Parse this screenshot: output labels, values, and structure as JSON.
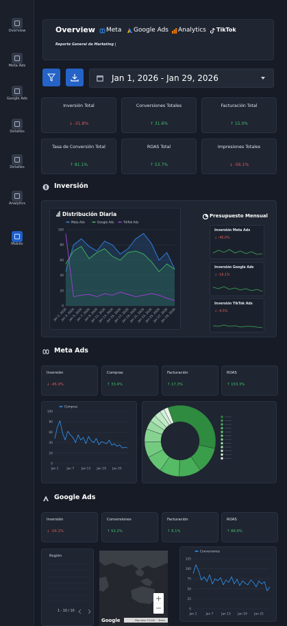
{
  "sidebar": {
    "items": [
      "Overview",
      "Meta Ads",
      "Google Ads",
      "Detalles",
      "Detalles",
      "Analytics",
      "Mobile"
    ]
  },
  "header": {
    "title": "Overview",
    "brands": [
      "Meta",
      "Google Ads",
      "Analytics",
      "TikTok"
    ],
    "subtitle": "Reporte General de Marketing |"
  },
  "date_range": "Jan 1, 2026 - Jan 29, 2026",
  "kpis": [
    {
      "label": "Inversión Total",
      "change": "↓ -31.8%"
    },
    {
      "label": "Conversiones Totales",
      "change": "↑ 31.6%"
    },
    {
      "label": "Facturación Total",
      "change": "↑ 15.0%"
    },
    {
      "label": "Tasa de Conversión Total",
      "change": "↑ 81.1%"
    },
    {
      "label": "ROAS Total",
      "change": "↑ 53.7%"
    },
    {
      "label": "Impresiones Totales",
      "change": "↓ -56.1%"
    }
  ],
  "inversion": {
    "title": "Inversión",
    "chart_data": {
      "type": "line",
      "title": "Distribución Diaria",
      "categories": [
        "Jan 1, 2026",
        "Jan 3, 2026",
        "Jan 5, 2026",
        "Jan 7, 2026",
        "Jan 9, 2026",
        "Jan 11, 2026",
        "Jan 13, 2026",
        "Jan 15, 2026",
        "Jan 17, 2026",
        "Jan 19, 2026",
        "Jan 21, 2026",
        "Jan 23, 2026",
        "Jan 25, 2026",
        "Jan 27, 2026",
        "Jan 29, 2026"
      ],
      "series": [
        {
          "name": "Meta Ads",
          "color": "#2f7fe0",
          "values": [
            45,
            80,
            88,
            78,
            72,
            85,
            80,
            68,
            75,
            88,
            95,
            82,
            60,
            70,
            48
          ]
        },
        {
          "name": "Google Ads",
          "color": "#3fae5a",
          "values": [
            55,
            72,
            78,
            62,
            70,
            75,
            65,
            60,
            70,
            72,
            68,
            58,
            45,
            55,
            48
          ]
        },
        {
          "name": "TikTok Ads",
          "color": "#9b3fd0",
          "values": [
            95,
            12,
            14,
            15,
            12,
            16,
            14,
            18,
            15,
            12,
            14,
            16,
            14,
            10,
            7
          ]
        }
      ],
      "ylim": [
        0,
        100
      ],
      "yticks": [
        0,
        20,
        40,
        60,
        80,
        100
      ]
    },
    "budget": {
      "title": "Presupuesto Mensual",
      "items": [
        {
          "label": "Inversión Meta Ads",
          "change": "↓ -45.0%"
        },
        {
          "label": "Inversión Google Ads",
          "change": "↓ -16.1%"
        },
        {
          "label": "Inversión TikTok Ads",
          "change": "↓ -4.5%"
        }
      ]
    }
  },
  "meta_ads": {
    "title": "Meta Ads",
    "kpis": [
      {
        "label": "Inversión",
        "change": "↓ -45.0%"
      },
      {
        "label": "Compras",
        "change": "↑ 33.4%"
      },
      {
        "label": "Facturación",
        "change": "↑ 17.3%"
      },
      {
        "label": "ROAS",
        "change": "↑ 153.3%"
      }
    ],
    "chart_data": {
      "type": "line",
      "categories": [
        "Jan 1",
        null,
        null,
        null,
        null,
        null,
        "Jan 7",
        null,
        null,
        null,
        null,
        null,
        "Jan 13",
        null,
        null,
        null,
        null,
        null,
        "Jan 19",
        null,
        null,
        null,
        null,
        null,
        "Jan 25",
        null,
        null,
        null,
        null
      ],
      "series": [
        {
          "name": "Compras",
          "color": "#2f8fe8",
          "values": [
            48,
            70,
            82,
            58,
            45,
            62,
            55,
            50,
            40,
            55,
            45,
            50,
            38,
            52,
            44,
            40,
            48,
            36,
            42,
            40,
            38,
            45,
            35,
            38,
            33,
            36,
            30,
            31,
            30
          ]
        }
      ],
      "ylim": [
        0,
        100
      ],
      "yticks": [
        0,
        20,
        40,
        60,
        80,
        100
      ]
    },
    "donut": {
      "chart_data": {
        "type": "donut",
        "values": [
          34,
          12,
          10,
          9,
          8,
          7,
          6,
          4,
          3,
          3,
          2,
          2
        ],
        "colors": [
          "#2f8b3f",
          "#3a9d4a",
          "#47ae57",
          "#55bb64",
          "#64c472",
          "#74cb80",
          "#86d390",
          "#98daa1",
          "#aee3b5",
          "#c2eac7",
          "#d4f0d7",
          "#e6f6e7"
        ]
      }
    }
  },
  "google_ads": {
    "title": "Google Ads",
    "kpis": [
      {
        "label": "Inversión",
        "change": "↓ -16.1%"
      },
      {
        "label": "Conversiones",
        "change": "↑ 52.2%"
      },
      {
        "label": "Facturación",
        "change": "↑ 8.1%"
      },
      {
        "label": "ROAS",
        "change": "↑ 88.8%"
      }
    ],
    "region": {
      "header": "Región",
      "pagination": "1 - 10 / 10"
    },
    "map": {
      "logo": "Google",
      "attribution": "Map data ©2026",
      "terms": "Terms"
    },
    "chart_data": {
      "type": "line",
      "categories": [
        "Jan 1",
        null,
        null,
        null,
        null,
        null,
        "Jan 7",
        null,
        null,
        null,
        null,
        null,
        "Jan 13",
        null,
        null,
        null,
        null,
        null,
        "Jan 19",
        null,
        null,
        null,
        null,
        null,
        "Jan 25",
        null,
        null,
        null,
        null
      ],
      "series": [
        {
          "name": "Conversiones",
          "color": "#2f8fe8",
          "values": [
            88,
            110,
            95,
            72,
            80,
            68,
            85,
            62,
            75,
            70,
            78,
            60,
            72,
            66,
            80,
            62,
            74,
            58,
            70,
            64,
            60,
            72,
            66,
            55,
            70,
            62,
            68,
            45,
            55
          ]
        }
      ],
      "ylim": [
        0,
        125
      ],
      "yticks": [
        0,
        25,
        50,
        75,
        100,
        125
      ]
    }
  }
}
